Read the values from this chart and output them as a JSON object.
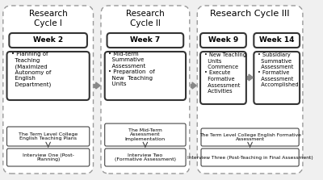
{
  "bg_color": "#f0f0f0",
  "border_color": "#555555",
  "box_fill": "#ffffff",
  "dashed_border": "#888888",
  "cycle1": {
    "title": "Research\nCycle I",
    "week": "Week 2",
    "bullet_text": "• Planning of\n  Teaching\n  (Maximized\n  Autonomy of\n  English\n  Department)",
    "bottom1": "The Term Level College\nEnglish Teaching Plans",
    "bottom2": "Interview One (Post-\nPlanning)"
  },
  "cycle2": {
    "title": "Research\nCycle II",
    "week": "Week 7",
    "bullet_text": "• Mid-term\n  Summative\n  Assessment\n• Preparation  of\n  New  Teaching\n  Units",
    "bottom1": "The Mid-Term\nAssessment\nImplementation",
    "bottom2": "Interview Two\n(Formative Assessment)"
  },
  "cycle3": {
    "title": "Research Cycle III",
    "week9": "Week 9",
    "week14": "Week 14",
    "bullet9": "• New Teaching\n  Units\n  Commence\n• Execute\n  Formative\n  Assessment\n  Activities",
    "bullet14": "• Subsidiary\n  Summative\n  Assessment\n• Formative\n  Assessment\n  Accomplished",
    "bottom1": "The Term Level College English Formative\nAssessment",
    "bottom2": "Interview Three (Post-Teaching in Final Assessment)"
  }
}
